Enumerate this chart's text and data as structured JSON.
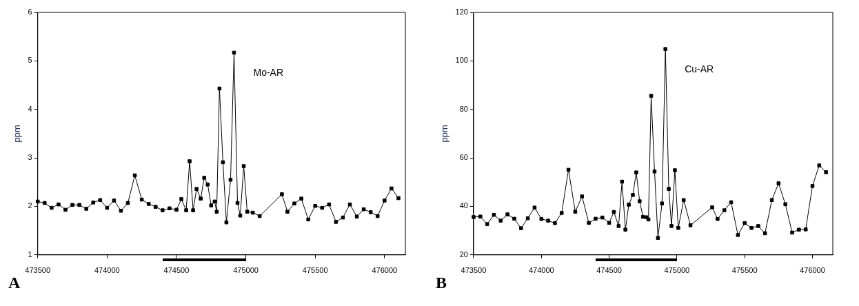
{
  "chart_data": [
    {
      "type": "line",
      "ylabel": "ppm",
      "annotations": [
        "A"
      ],
      "xlim": [
        473500,
        476150
      ],
      "xticks": [
        473500,
        474000,
        474500,
        475000,
        475500,
        476000
      ],
      "ylim": [
        1,
        6
      ],
      "yticks": [
        1,
        2,
        3,
        4,
        5,
        6
      ],
      "grid": false,
      "legend": false,
      "marker": "square",
      "line_style": "solid",
      "x": [
        473500,
        473550,
        473600,
        473650,
        473700,
        473750,
        473800,
        473850,
        473900,
        473950,
        474000,
        474050,
        474100,
        474150,
        474200,
        474250,
        474300,
        474350,
        474400,
        474450,
        474500,
        474535,
        474570,
        474595,
        474620,
        474645,
        474675,
        474700,
        474725,
        474750,
        474775,
        474790,
        474810,
        474835,
        474860,
        474890,
        474915,
        474940,
        474960,
        474985,
        475010,
        475050,
        475100,
        475260,
        475300,
        475350,
        475400,
        475450,
        475500,
        475550,
        475600,
        475650,
        475700,
        475750,
        475800,
        475850,
        475900,
        475950,
        476000,
        476050,
        476100
      ],
      "series": [
        {
          "name": "Mo-AR",
          "color": "#000000",
          "values": [
            2.1,
            2.07,
            1.97,
            2.04,
            1.93,
            2.03,
            2.03,
            1.95,
            2.08,
            2.13,
            1.97,
            2.12,
            1.91,
            2.07,
            2.64,
            2.14,
            2.05,
            1.99,
            1.92,
            1.96,
            1.93,
            2.15,
            1.92,
            2.93,
            1.92,
            2.36,
            2.16,
            2.59,
            2.45,
            2.02,
            2.1,
            1.89,
            4.43,
            2.91,
            1.67,
            2.55,
            5.17,
            2.07,
            1.81,
            2.83,
            1.89,
            1.87,
            1.8,
            2.25,
            1.89,
            2.06,
            2.16,
            1.73,
            2.01,
            1.97,
            2.04,
            1.68,
            1.77,
            2.04,
            1.79,
            1.94,
            1.88,
            1.8,
            2.12,
            2.37,
            2.17
          ]
        }
      ]
    },
    {
      "type": "line",
      "ylabel": "ppm",
      "annotations": [
        "B"
      ],
      "xlim": [
        473500,
        476150
      ],
      "xticks": [
        473500,
        474000,
        474500,
        475000,
        475500,
        476000
      ],
      "ylim": [
        20,
        120
      ],
      "yticks": [
        20,
        40,
        60,
        80,
        100,
        120
      ],
      "grid": false,
      "legend": false,
      "marker": "square",
      "line_style": "solid",
      "x": [
        473500,
        473550,
        473600,
        473650,
        473700,
        473750,
        473800,
        473850,
        473900,
        473950,
        474000,
        474050,
        474100,
        474150,
        474200,
        474250,
        474300,
        474350,
        474400,
        474450,
        474500,
        474535,
        474570,
        474595,
        474620,
        474645,
        474675,
        474700,
        474725,
        474750,
        474775,
        474790,
        474810,
        474835,
        474860,
        474890,
        474915,
        474940,
        474960,
        474985,
        475010,
        475050,
        475100,
        475260,
        475300,
        475350,
        475400,
        475450,
        475500,
        475550,
        475600,
        475650,
        475700,
        475750,
        475800,
        475850,
        475900,
        475950,
        476000,
        476050,
        476100
      ],
      "series": [
        {
          "name": "Cu-AR",
          "color": "#000000",
          "values": [
            35.6,
            35.8,
            32.7,
            36.5,
            34.1,
            36.7,
            34.9,
            31.0,
            35.1,
            39.5,
            34.8,
            34.1,
            33.1,
            37.3,
            55.1,
            37.8,
            44.1,
            33.2,
            34.9,
            35.4,
            33.2,
            37.7,
            31.9,
            50.2,
            30.4,
            40.7,
            44.7,
            54.0,
            42.1,
            35.7,
            35.5,
            34.6,
            85.6,
            54.4,
            27.0,
            41.2,
            104.9,
            47.2,
            31.9,
            54.9,
            31.1,
            42.6,
            32.2,
            39.6,
            34.8,
            38.4,
            41.7,
            28.2,
            33.1,
            31.1,
            31.9,
            28.9,
            42.6,
            49.5,
            40.9,
            29.2,
            30.4,
            30.5,
            48.4,
            56.9,
            54.1
          ]
        }
      ]
    }
  ]
}
